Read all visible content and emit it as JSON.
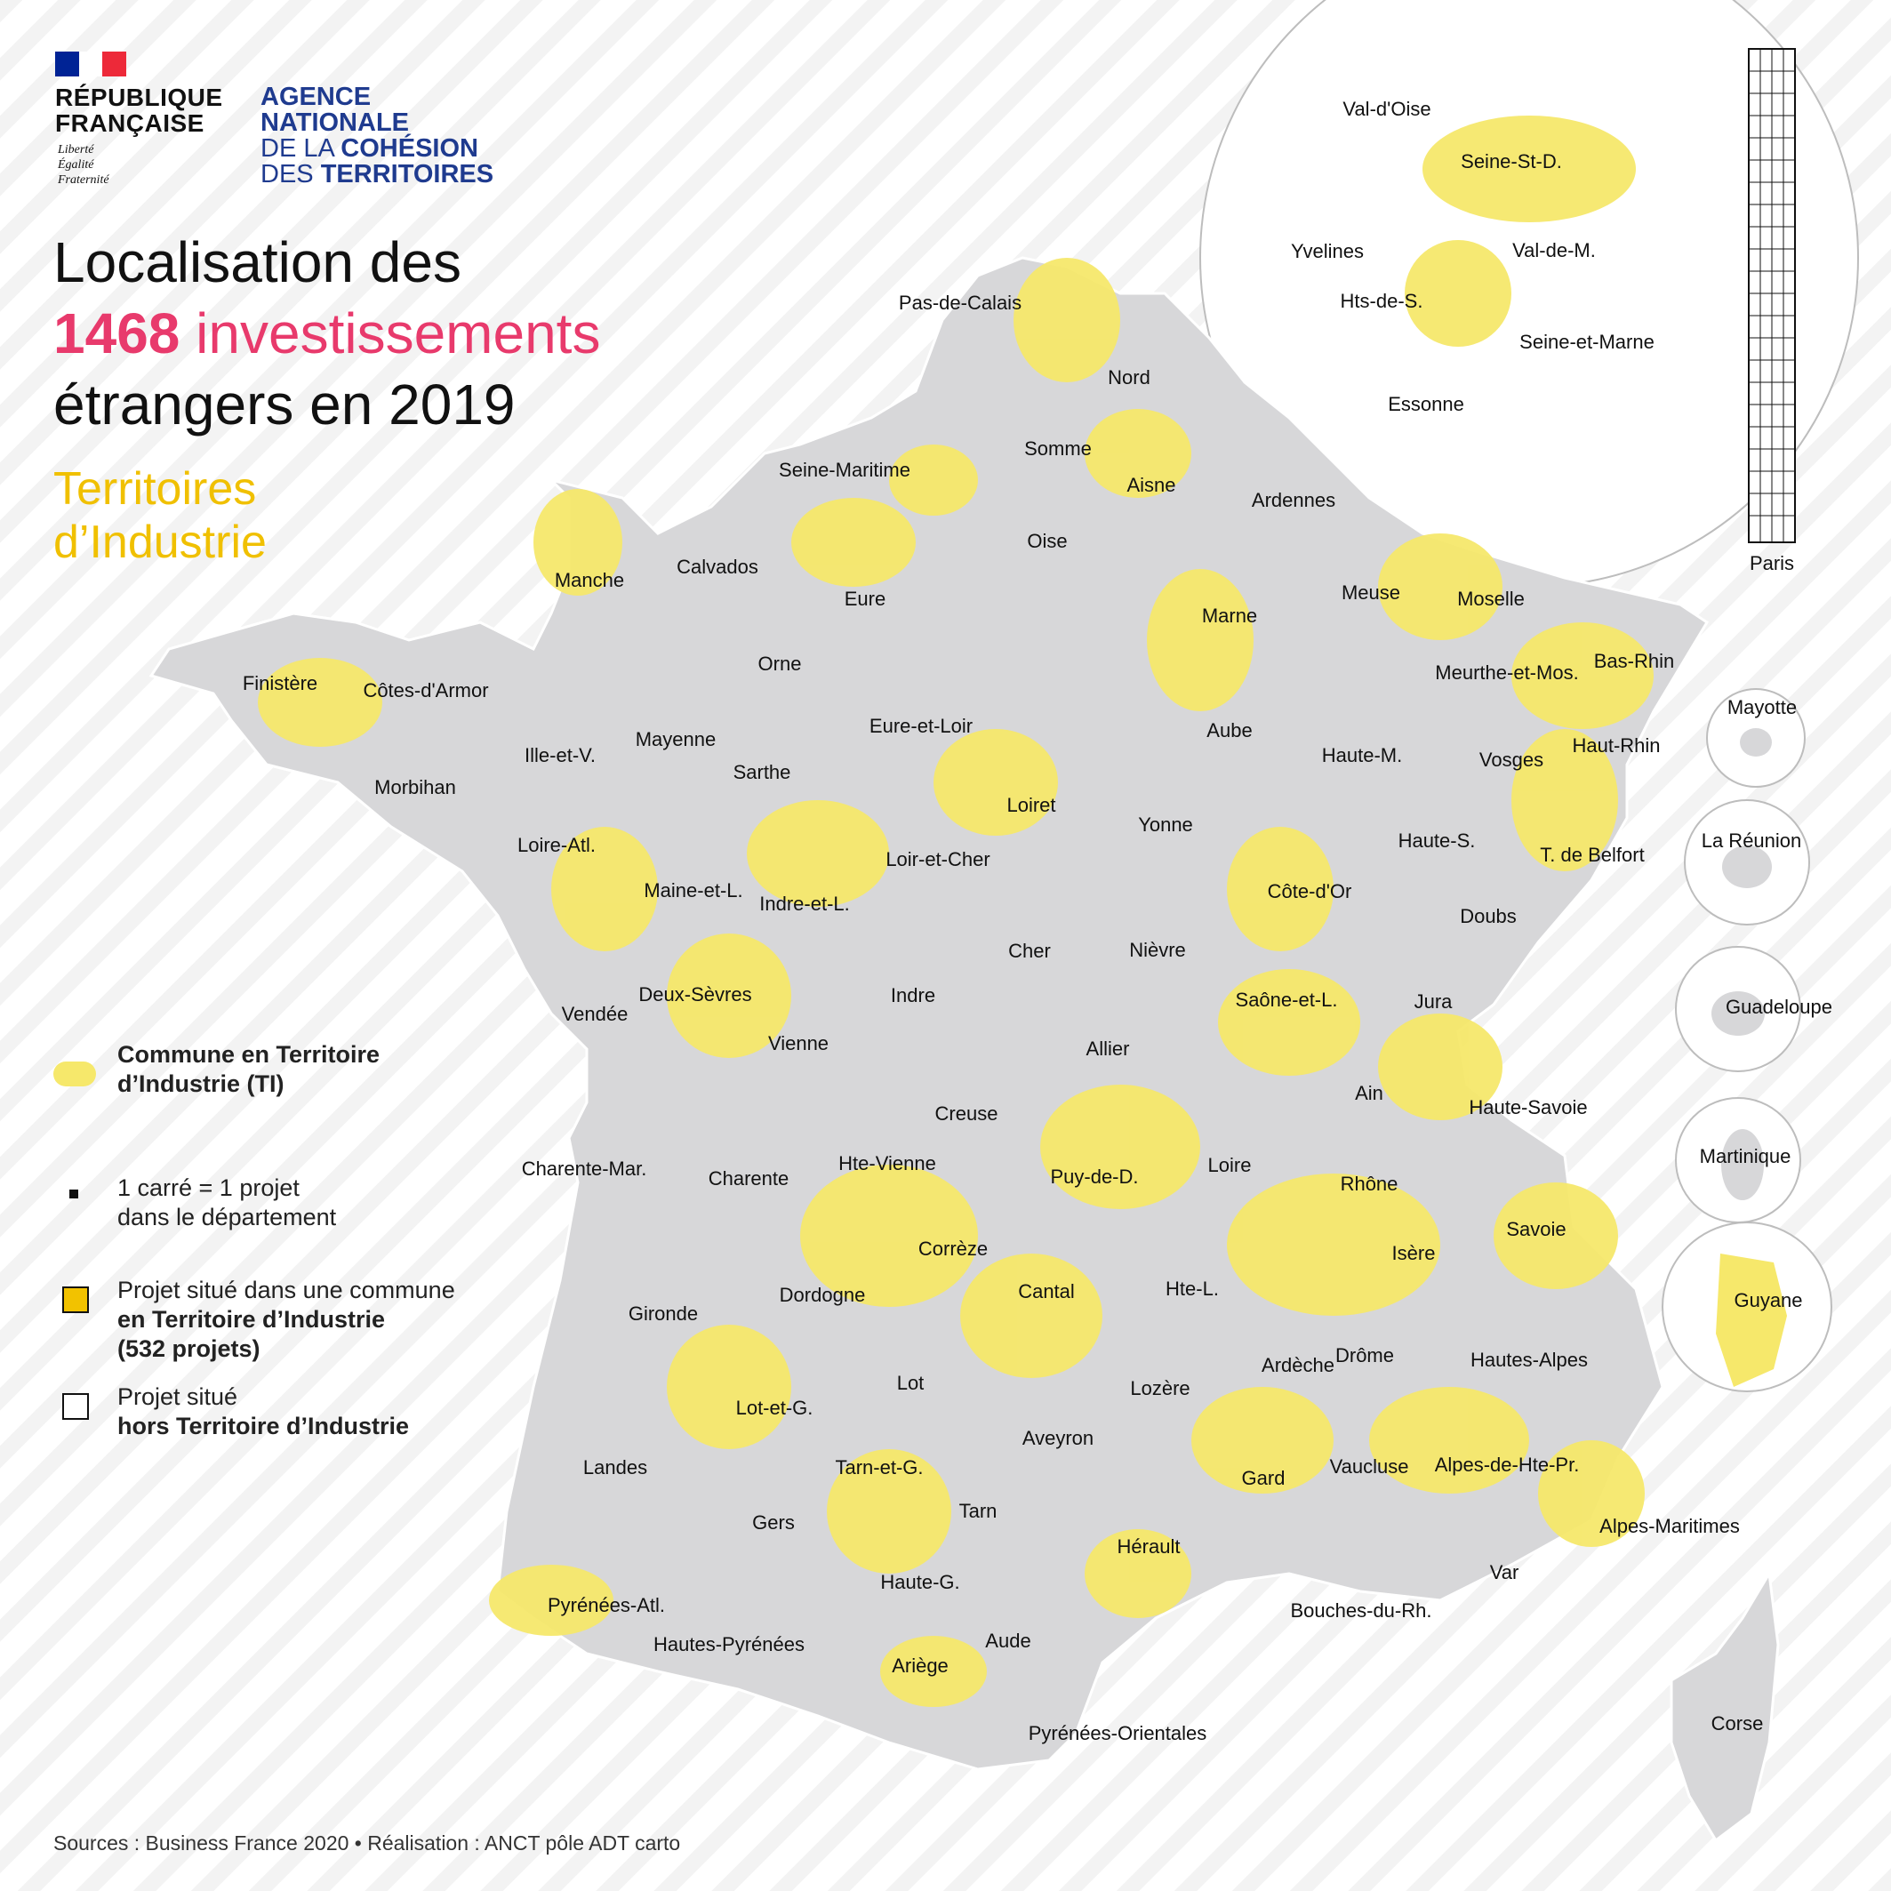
{
  "header": {
    "republic": [
      "RÉPUBLIQUE",
      "FRANÇAISE"
    ],
    "devise": [
      "Liberté",
      "Égalité",
      "Fraternité"
    ],
    "agency": {
      "line1": "AGENCE",
      "line2": "NATIONALE",
      "line3a": "DE LA ",
      "line3b": "COHÉSION",
      "line4a": "DES ",
      "line4b": "TERRITOIRES"
    }
  },
  "title": {
    "line1": "Localisation des",
    "count": "1468",
    "line2_rest": " investissements",
    "line3": "étrangers en 2019"
  },
  "subtitle": [
    "Territoires",
    "d’Industrie"
  ],
  "legend": {
    "ti_label": [
      "Commune en Territoire",
      "d’Industrie (TI)"
    ],
    "unit_label": [
      "1 carré = 1 projet",
      "dans le département"
    ],
    "in_ti_label": [
      "Projet situé dans une commune",
      "en Territoire d’Industrie",
      "(532 projets)"
    ],
    "out_ti_label": [
      "Projet situé",
      "hors Territoire d’Industrie"
    ]
  },
  "colors": {
    "territoire_industrie": "#f6e86b",
    "project_in_ti": "#f2c200",
    "project_out_ti": "#ffffff",
    "department_fill": "#d7d7d9",
    "accent_pink": "#e83a6c",
    "accent_yellow": "#f0c000",
    "agency_blue": "#1f3b8f"
  },
  "map_labels": {
    "departements": [
      "Pas-de-Calais",
      "Nord",
      "Somme",
      "Aisne",
      "Seine-Maritime",
      "Oise",
      "Ardennes",
      "Manche",
      "Calvados",
      "Eure",
      "Marne",
      "Meuse",
      "Moselle",
      "Bas-Rhin",
      "Finistère",
      "Côtes-d'Armor",
      "Orne",
      "Meurthe-et-Mos.",
      "Eure-et-Loir",
      "Aube",
      "Mayenne",
      "Ille-et-V.",
      "Haute-M.",
      "Vosges",
      "Haut-Rhin",
      "Morbihan",
      "Sarthe",
      "Loiret",
      "Yonne",
      "Haute-S.",
      "T. de Belfort",
      "Loire-Atl.",
      "Maine-et-L.",
      "Loir-et-Cher",
      "Côte-d'Or",
      "Indre-et-L.",
      "Cher",
      "Nièvre",
      "Doubs",
      "Indre",
      "Deux-Sèvres",
      "Vendée",
      "Vienne",
      "Saône-et-L.",
      "Jura",
      "Allier",
      "Ain",
      "Haute-Savoie",
      "Creuse",
      "Charente-Mar.",
      "Charente",
      "Hte-Vienne",
      "Puy-de-D.",
      "Loire",
      "Rhône",
      "Savoie",
      "Corrèze",
      "Isère",
      "Cantal",
      "Hte-L.",
      "Dordogne",
      "Gironde",
      "Ardèche",
      "Drôme",
      "Hautes-Alpes",
      "Lozère",
      "Lot",
      "Lot-et-G.",
      "Aveyron",
      "Landes",
      "Tarn-et-G.",
      "Gard",
      "Vaucluse",
      "Alpes-de-Hte-Pr.",
      "Alpes-Maritimes",
      "Gers",
      "Tarn",
      "Hérault",
      "Bouches-du-Rh.",
      "Var",
      "Haute-G.",
      "Pyrénées-Atl.",
      "Aude",
      "Hautes-Pyrénées",
      "Ariège",
      "Pyrénées-Orientales",
      "Corse"
    ],
    "ile_de_france": [
      "Val-d'Oise",
      "Seine-St-D.",
      "Yvelines",
      "Val-de-M.",
      "Hts-de-S.",
      "Seine-et-Marne",
      "Essonne",
      "Paris"
    ],
    "outre_mer": [
      "Mayotte",
      "La Réunion",
      "Guadeloupe",
      "Martinique",
      "Guyane"
    ]
  },
  "source": "Sources : Business France 2020 • Réalisation : ANCT pôle ADT carto"
}
